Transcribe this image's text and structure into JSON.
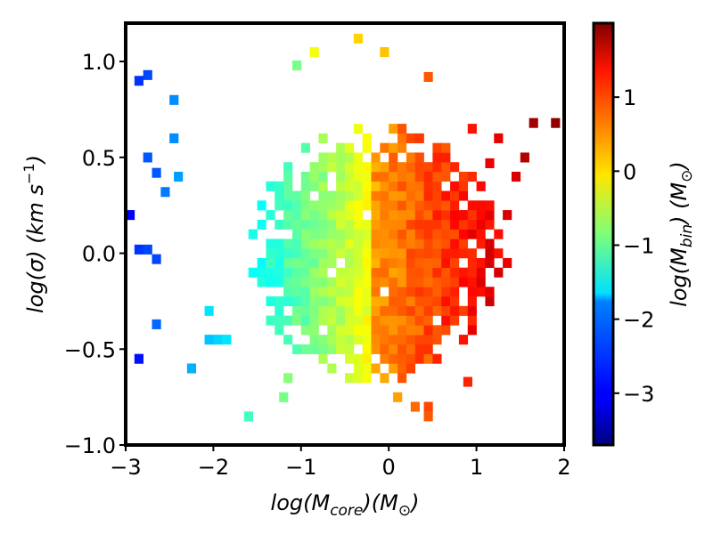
{
  "chart_data": {
    "type": "heatmap",
    "xlabel_parts": {
      "base": "log(M",
      "sub": "core",
      "tail": ")(M",
      "sym": "⊙",
      "close": ")"
    },
    "ylabel_parts": {
      "base": "log(σ) (km s",
      "sup": "−1",
      "close": ")"
    },
    "colorbar_label_parts": {
      "base": "log(M",
      "sub": "bin",
      "tail": ") (M",
      "sym": "⊙",
      "close": ")"
    },
    "xlim": [
      -3,
      2
    ],
    "ylim": [
      -1,
      1.2
    ],
    "x_ticks": [
      -3,
      -2,
      -1,
      0,
      1,
      2
    ],
    "x_tick_labels": [
      "−3",
      "−2",
      "−1",
      "0",
      "1",
      "2"
    ],
    "y_ticks": [
      -1.0,
      -0.5,
      0.0,
      0.5,
      1.0
    ],
    "y_tick_labels": [
      "−1.0",
      "−0.5",
      "0.0",
      "0.5",
      "1.0"
    ],
    "colorbar": {
      "colormap": "jet",
      "range": [
        -3.7,
        2.0
      ],
      "ticks": [
        -3,
        -2,
        -1,
        0,
        1
      ],
      "tick_labels": [
        "−3",
        "−2",
        "−1",
        "0",
        "1"
      ]
    },
    "bin_size": {
      "dx": 0.1,
      "dy": 0.05
    },
    "sparse_points": [
      [
        -2.95,
        0.2,
        -3.0
      ],
      [
        -2.75,
        0.93,
        -2.6
      ],
      [
        -2.85,
        0.9,
        -2.7
      ],
      [
        -2.45,
        0.8,
        -2.2
      ],
      [
        -2.75,
        0.5,
        -2.5
      ],
      [
        -2.65,
        0.42,
        -2.5
      ],
      [
        -2.85,
        0.02,
        -2.7
      ],
      [
        -2.75,
        0.02,
        -2.6
      ],
      [
        -2.65,
        -0.03,
        -2.6
      ],
      [
        -2.55,
        0.32,
        -2.3
      ],
      [
        -2.45,
        0.6,
        -2.2
      ],
      [
        -2.4,
        0.4,
        -2.1
      ],
      [
        -2.85,
        -0.55,
        -2.9
      ],
      [
        -2.65,
        -0.37,
        -2.4
      ],
      [
        -2.25,
        -0.6,
        -2.0
      ],
      [
        -2.05,
        -0.3,
        -1.7
      ],
      [
        -2.05,
        -0.45,
        -1.9
      ],
      [
        -1.95,
        -0.45,
        -1.8
      ],
      [
        -1.85,
        -0.45,
        -1.7
      ],
      [
        -1.6,
        -0.85,
        -1.2
      ],
      [
        -1.2,
        -0.75,
        -0.9
      ],
      [
        -1.15,
        -0.65,
        -0.8
      ],
      [
        -1.05,
        0.98,
        -0.9
      ],
      [
        -0.85,
        1.05,
        -0.2
      ],
      [
        -0.35,
        1.12,
        0.1
      ],
      [
        -0.05,
        1.05,
        0.2
      ],
      [
        0.45,
        0.92,
        0.8
      ],
      [
        0.95,
        0.65,
        1.2
      ],
      [
        1.15,
        0.47,
        1.4
      ],
      [
        1.35,
        0.2,
        1.5
      ],
      [
        1.35,
        -0.05,
        1.4
      ],
      [
        1.55,
        0.5,
        1.7
      ],
      [
        1.65,
        0.68,
        1.8
      ],
      [
        1.9,
        0.68,
        1.9
      ],
      [
        1.45,
        0.4,
        1.5
      ],
      [
        1.25,
        0.6,
        1.4
      ],
      [
        0.3,
        -0.8,
        0.7
      ],
      [
        0.45,
        -0.8,
        0.9
      ],
      [
        0.45,
        -0.85,
        0.8
      ],
      [
        0.1,
        -0.75,
        0.4
      ],
      [
        0.9,
        -0.67,
        1.1
      ]
    ]
  }
}
